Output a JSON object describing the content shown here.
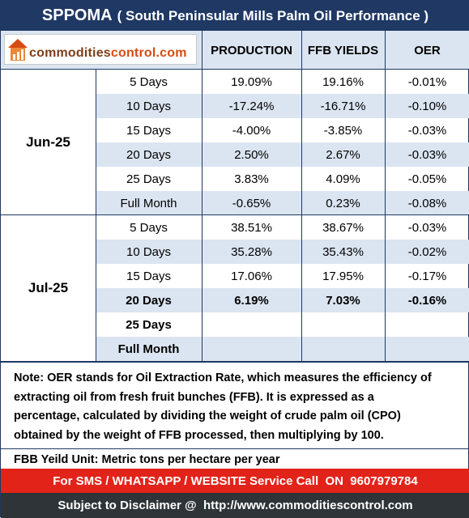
{
  "title": {
    "main": "SPPOMA",
    "sub": "( South Peninsular Mills Palm Oil Performance )"
  },
  "logo": {
    "part1": "commodities",
    "part2": "control.com",
    "icon": "house-chart-icon"
  },
  "columns": {
    "production": "PRODUCTION",
    "ffb": "FFB YIELDS",
    "oer": "OER"
  },
  "jun": {
    "label": "Jun-25",
    "rows": [
      {
        "period": "5 Days",
        "production": "19.09%",
        "ffb": "19.16%",
        "oer": "-0.01%"
      },
      {
        "period": "10 Days",
        "production": "-17.24%",
        "ffb": "-16.71%",
        "oer": "-0.10%"
      },
      {
        "period": "15 Days",
        "production": "-4.00%",
        "ffb": "-3.85%",
        "oer": "-0.03%"
      },
      {
        "period": "20 Days",
        "production": "2.50%",
        "ffb": "2.67%",
        "oer": "-0.03%"
      },
      {
        "period": "25 Days",
        "production": "3.83%",
        "ffb": "4.09%",
        "oer": "-0.05%"
      },
      {
        "period": "Full Month",
        "production": "-0.65%",
        "ffb": "0.23%",
        "oer": "-0.08%"
      }
    ]
  },
  "jul": {
    "label": "Jul-25",
    "rows": [
      {
        "period": "5 Days",
        "production": "38.51%",
        "ffb": "38.67%",
        "oer": "-0.03%"
      },
      {
        "period": "10 Days",
        "production": "35.28%",
        "ffb": "35.43%",
        "oer": "-0.02%"
      },
      {
        "period": "15 Days",
        "production": "17.06%",
        "ffb": "17.95%",
        "oer": "-0.17%"
      },
      {
        "period": "20 Days",
        "production": "6.19%",
        "ffb": "7.03%",
        "oer": "-0.16%"
      },
      {
        "period": "25 Days",
        "production": "",
        "ffb": "",
        "oer": ""
      },
      {
        "period": "Full Month",
        "production": "",
        "ffb": "",
        "oer": ""
      }
    ]
  },
  "note": {
    "line1": "Note: OER stands for Oil Extraction Rate, which measures the efficiency of",
    "line2": "extracting oil from fresh fruit bunches (FFB). It is expressed as a",
    "line3": "percentage, calculated by dividing the weight of crude palm oil (CPO)",
    "line4": "obtained by the weight of FFB processed, then multiplying by 100."
  },
  "unit": "FBB Yeild Unit: Metric tons per hectare per year",
  "sms": "For SMS / WHATSAPP / WEBSITE Service Call  ON  9607979784",
  "disclaimer": "Subject to Disclaimer @  http://www.commoditiescontrol.com",
  "colors": {
    "navy": "#1f3864",
    "band": "#dbe5f1",
    "red": "#e2231a",
    "dark": "#2e3438"
  }
}
